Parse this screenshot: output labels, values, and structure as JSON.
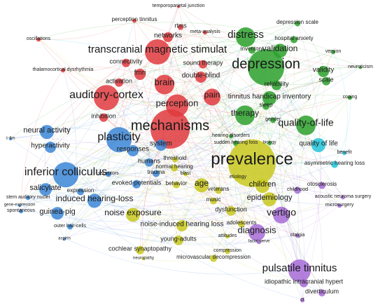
{
  "nodes": [
    {
      "label": "temporoparietal junction",
      "color": "#e0393e"
    },
    {
      "label": "perception tinnitus",
      "color": "#e0393e"
    },
    {
      "label": "rtms",
      "color": "#e0393e"
    },
    {
      "label": "meta-analysis",
      "color": "#e0393e"
    },
    {
      "label": "networks",
      "color": "#e0393e"
    },
    {
      "label": "transcranial magnetic stimulat",
      "color": "#e0393e"
    },
    {
      "label": "sound therapy",
      "color": "#e0393e"
    },
    {
      "label": "connectivity",
      "color": "#e0393e"
    },
    {
      "label": "fmri",
      "color": "#e0393e"
    },
    {
      "label": "thalamocortical dysrhythmia",
      "color": "#e0393e"
    },
    {
      "label": "oscillations",
      "color": "#e0393e"
    },
    {
      "label": "double-blind",
      "color": "#e0393e"
    },
    {
      "label": "activation",
      "color": "#e0393e"
    },
    {
      "label": "brain",
      "color": "#e0393e"
    },
    {
      "label": "auditory-cortex",
      "color": "#e0393e"
    },
    {
      "label": "pain",
      "color": "#e0393e"
    },
    {
      "label": "perception",
      "color": "#e0393e"
    },
    {
      "label": "inhibition",
      "color": "#e0393e"
    },
    {
      "label": "mechanisms",
      "color": "#e0393e"
    },
    {
      "label": "depression scale",
      "color": "#2ca02c"
    },
    {
      "label": "distress",
      "color": "#2ca02c"
    },
    {
      "label": "hospital anxiety",
      "color": "#2ca02c"
    },
    {
      "label": "validation",
      "color": "#2ca02c"
    },
    {
      "label": "version",
      "color": "#2ca02c"
    },
    {
      "label": "inventory",
      "color": "#2ca02c"
    },
    {
      "label": "depression",
      "color": "#2ca02c"
    },
    {
      "label": "neuroticism",
      "color": "#2ca02c"
    },
    {
      "label": "validity",
      "color": "#2ca02c"
    },
    {
      "label": "scale",
      "color": "#2ca02c"
    },
    {
      "label": "reliability",
      "color": "#2ca02c"
    },
    {
      "label": "coping",
      "color": "#2ca02c"
    },
    {
      "label": "tinnitus handicap inventory",
      "color": "#2ca02c"
    },
    {
      "label": "sleep",
      "color": "#2ca02c"
    },
    {
      "label": "therapy",
      "color": "#2ca02c"
    },
    {
      "label": "quality-of-life",
      "color": "#2ca02c"
    },
    {
      "label": "gender",
      "color": "#2ca02c"
    },
    {
      "label": "hearing disorders",
      "color": "#2ca02c"
    },
    {
      "label": "sudden hearing loss",
      "color": "#2ca02c"
    },
    {
      "label": "biology",
      "color": "#2ca02c"
    },
    {
      "label": "prevalence",
      "color": "#c8c81e"
    },
    {
      "label": "children",
      "color": "#c8c81e"
    },
    {
      "label": "epidemiology",
      "color": "#c8c81e"
    },
    {
      "label": "age",
      "color": "#c8c81e"
    },
    {
      "label": "veterans",
      "color": "#c8c81e"
    },
    {
      "label": "threshold",
      "color": "#c8c81e"
    },
    {
      "label": "normal hearing",
      "color": "#c8c81e"
    },
    {
      "label": "blast",
      "color": "#c8c81e"
    },
    {
      "label": "behavior",
      "color": "#c8c81e"
    },
    {
      "label": "music",
      "color": "#c8c81e"
    },
    {
      "label": "dysfunction",
      "color": "#c8c81e"
    },
    {
      "label": "etiology",
      "color": "#c8c81e"
    },
    {
      "label": "noise exposure",
      "color": "#c8c81e"
    },
    {
      "label": "noise-induced hearing loss",
      "color": "#c8c81e"
    },
    {
      "label": "young-adults",
      "color": "#c8c81e"
    },
    {
      "label": "adolescents",
      "color": "#c8c81e"
    },
    {
      "label": "cochlear synaptopathy",
      "color": "#c8c81e"
    },
    {
      "label": "attitudes",
      "color": "#c8c81e"
    },
    {
      "label": "neuropathy",
      "color": "#c8c81e"
    },
    {
      "label": "compression",
      "color": "#c8c81e"
    },
    {
      "label": "microvascular decompression",
      "color": "#c8c81e"
    },
    {
      "label": "neural activity",
      "color": "#3b86d6"
    },
    {
      "label": "plasticity",
      "color": "#3b86d6"
    },
    {
      "label": "responses",
      "color": "#3b86d6"
    },
    {
      "label": "system",
      "color": "#3b86d6"
    },
    {
      "label": "hyperactivity",
      "color": "#3b86d6"
    },
    {
      "label": "c-fos",
      "color": "#3b86d6"
    },
    {
      "label": "inferior colliculus",
      "color": "#3b86d6"
    },
    {
      "label": "humans",
      "color": "#3b86d6"
    },
    {
      "label": "trauma",
      "color": "#3b86d6"
    },
    {
      "label": "receptors",
      "color": "#3b86d6"
    },
    {
      "label": "salicylate",
      "color": "#3b86d6"
    },
    {
      "label": "evoked-potentials",
      "color": "#3b86d6"
    },
    {
      "label": "expression",
      "color": "#3b86d6"
    },
    {
      "label": "induced hearing-loss",
      "color": "#3b86d6"
    },
    {
      "label": "stem auditory nuclei",
      "color": "#3b86d6"
    },
    {
      "label": "gene-expression",
      "color": "#3b86d6"
    },
    {
      "label": "spontaneous",
      "color": "#3b86d6"
    },
    {
      "label": "guinea-pig",
      "color": "#3b86d6"
    },
    {
      "label": "outer hair-cells",
      "color": "#3b86d6"
    },
    {
      "label": "aspirin",
      "color": "#3b86d6"
    },
    {
      "label": "quality of life",
      "color": "#22c3d8"
    },
    {
      "label": "benefit",
      "color": "#22c3d8"
    },
    {
      "label": "asymmetric hearing loss",
      "color": "#22c3d8"
    },
    {
      "label": "otosclerosis",
      "color": "#a66bd6"
    },
    {
      "label": "childhood",
      "color": "#a66bd6"
    },
    {
      "label": "acoustic neuroma surgery",
      "color": "#a66bd6"
    },
    {
      "label": "microsurgery",
      "color": "#a66bd6"
    },
    {
      "label": "vertigo",
      "color": "#a66bd6"
    },
    {
      "label": "diagnosis",
      "color": "#a66bd6"
    },
    {
      "label": "otalgia",
      "color": "#a66bd6"
    },
    {
      "label": "facial nerve",
      "color": "#a66bd6"
    },
    {
      "label": "pulsatile tinnitus",
      "color": "#a66bd6"
    },
    {
      "label": "idiopathic intracranial hypert",
      "color": "#a66bd6"
    },
    {
      "label": "diverticulum",
      "color": "#a66bd6"
    },
    {
      "label": "ct",
      "color": "#a66bd6"
    }
  ]
}
